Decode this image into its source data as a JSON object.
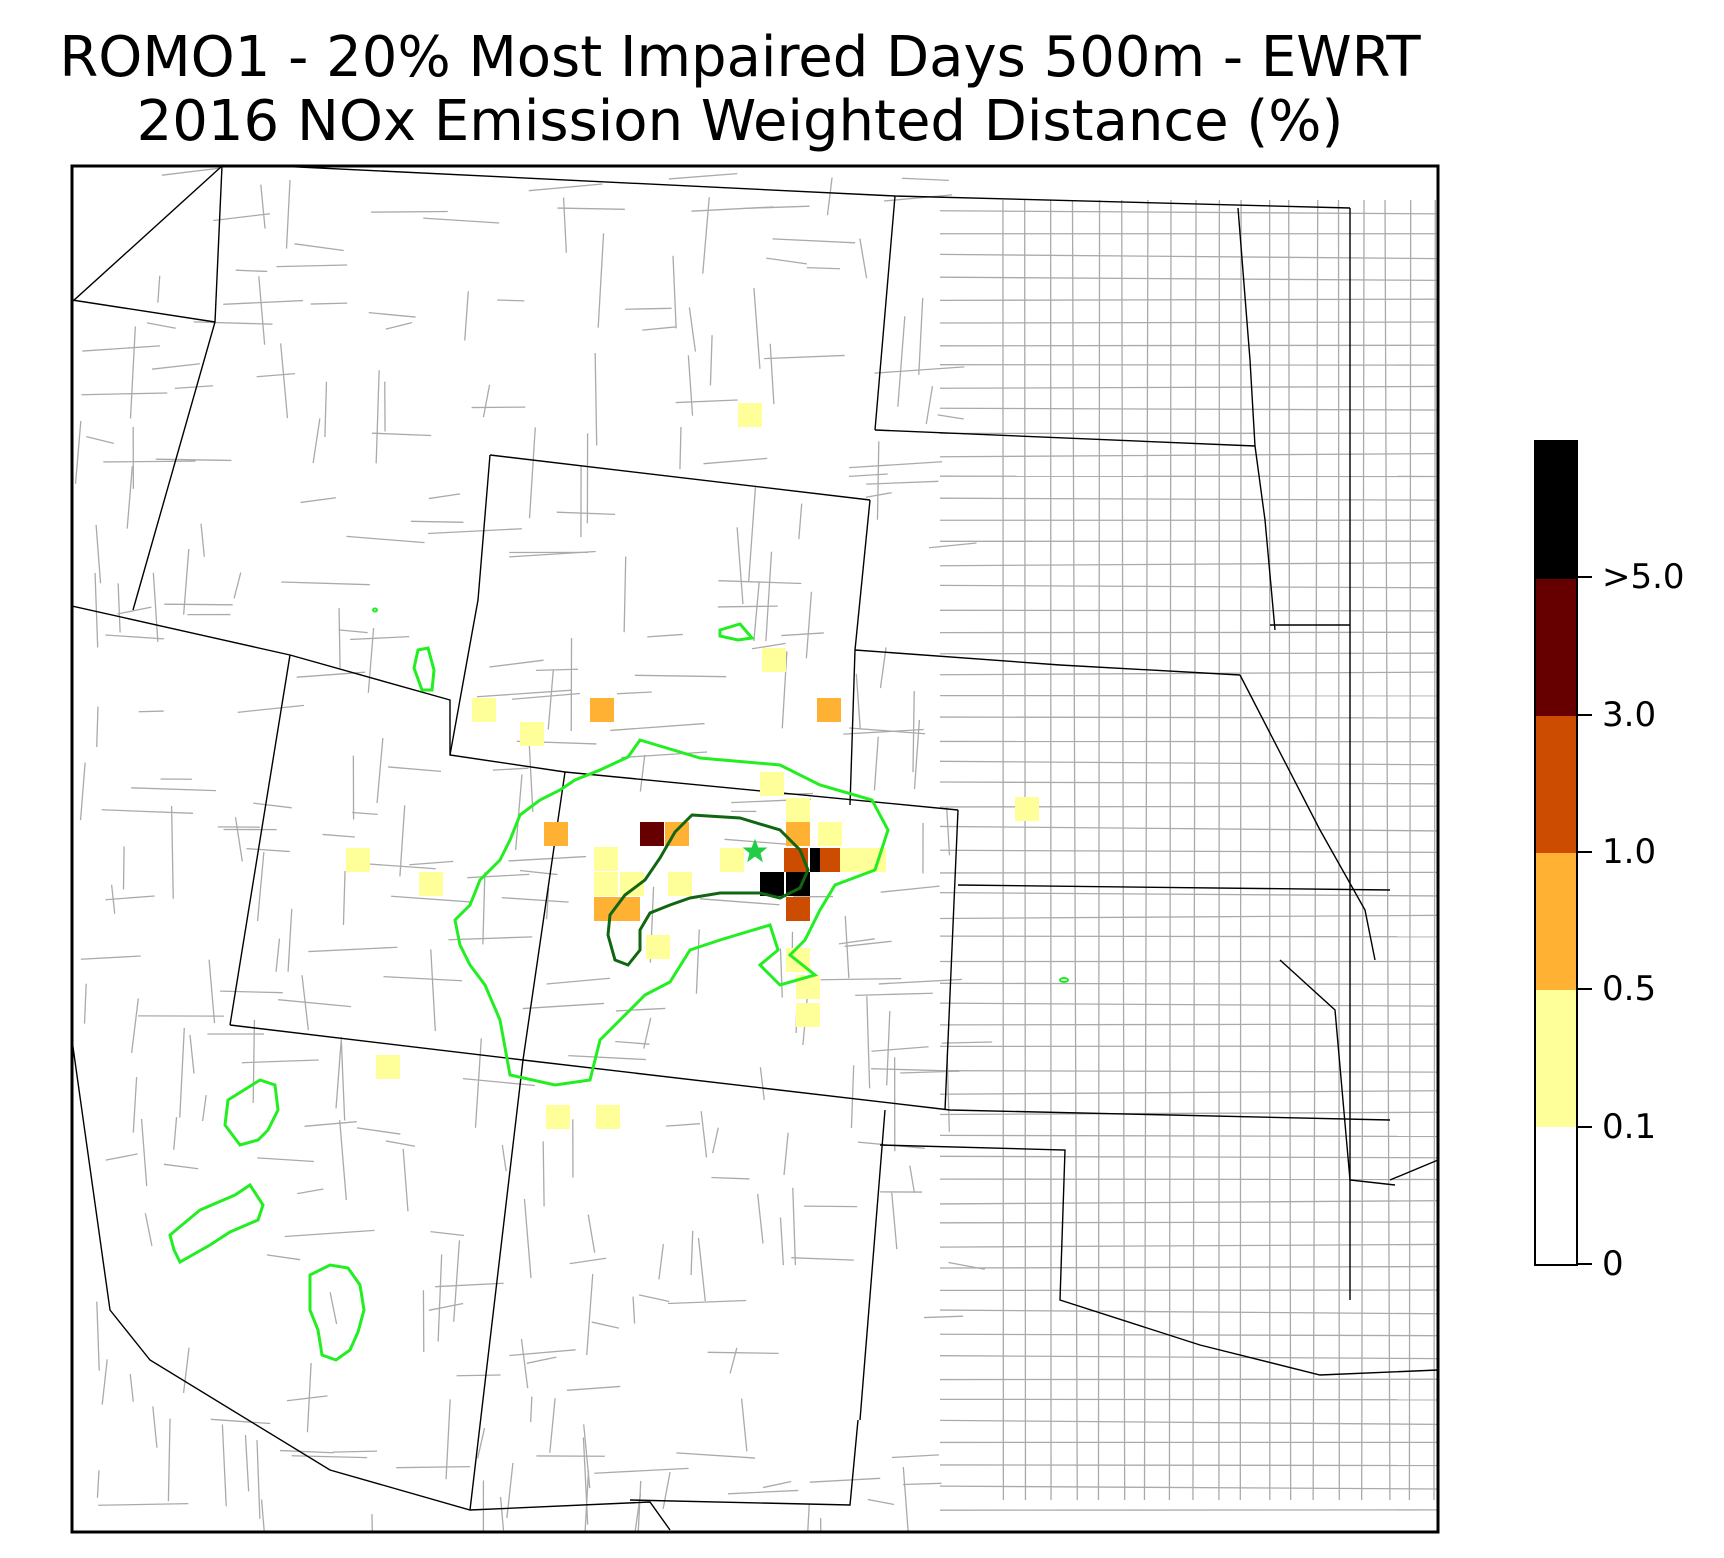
{
  "title": {
    "line1": "ROMO1 - 20% Most Impaired Days 500m - EWRT",
    "line2": "2016 NOx Emission Weighted Distance (%)"
  },
  "colorbar": {
    "segments": [
      {
        "color": "#ffffff"
      },
      {
        "color": "#ffff99"
      },
      {
        "color": "#feb133"
      },
      {
        "color": "#cc4c02"
      },
      {
        "color": "#660000"
      },
      {
        "color": "#000000"
      }
    ],
    "labels": [
      "0",
      "0.1",
      "0.5",
      "1.0",
      "3.0",
      ">5.0"
    ]
  },
  "colors": {
    "state_border": "#000000",
    "county_border": "#aaaaaa",
    "contour_outer": "#22ee22",
    "contour_inner": "#116611",
    "site_marker": "#22cc44"
  },
  "site_marker": {
    "icon": "star-icon"
  }
}
